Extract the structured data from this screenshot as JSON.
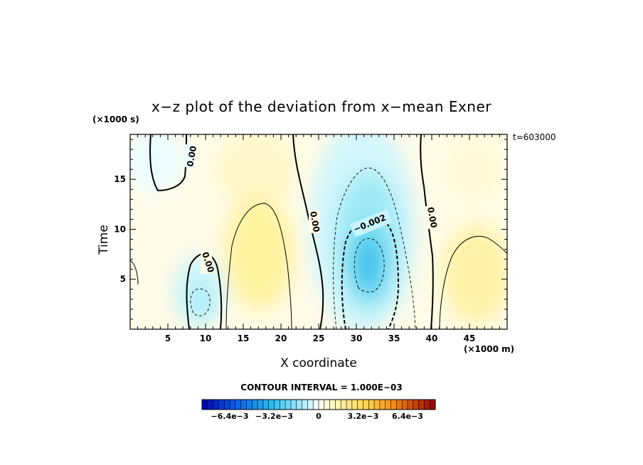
{
  "chart_data": {
    "type": "heatmap",
    "title": "x−z plot of the deviation from x−mean Exner",
    "xlabel": "X coordinate",
    "ylabel": "Time",
    "x_unit": "(×1000 m)",
    "y_unit": "(×1000 s)",
    "time_label": "t=603000",
    "xlim": [
      0,
      50
    ],
    "ylim": [
      0,
      19.5
    ],
    "x_ticks": [
      "5",
      "10",
      "15",
      "20",
      "25",
      "30",
      "35",
      "40",
      "45"
    ],
    "y_ticks": [
      "5",
      "10",
      "15"
    ],
    "contour_interval_text": "CONTOUR INTERVAL = 1.000E−03",
    "contour_labels": [
      "0.00",
      "0.00",
      "0.00",
      "0.00",
      "−0.002"
    ],
    "colorbar": {
      "min": -0.0084,
      "max": 0.0084,
      "levels": 42,
      "tick_labels": [
        "−6.4e−3",
        "−3.2e−3",
        "0",
        "3.2e−3",
        "6.4e−3"
      ]
    },
    "features": [
      {
        "x": 2.8,
        "y": 17.0,
        "value": -0.0004
      },
      {
        "x": 7.5,
        "y": 11.0,
        "value": 0.0003
      },
      {
        "x": 9.0,
        "y": 2.5,
        "value": -0.0012
      },
      {
        "x": 17.5,
        "y": 7.0,
        "value": 0.0009
      },
      {
        "x": 23.0,
        "y": 16.0,
        "value": 0.0005
      },
      {
        "x": 31.5,
        "y": 6.5,
        "value": -0.0034
      },
      {
        "x": 45.0,
        "y": 5.0,
        "value": 0.0007
      },
      {
        "x": 46.0,
        "y": 17.0,
        "value": 0.0003
      }
    ]
  }
}
